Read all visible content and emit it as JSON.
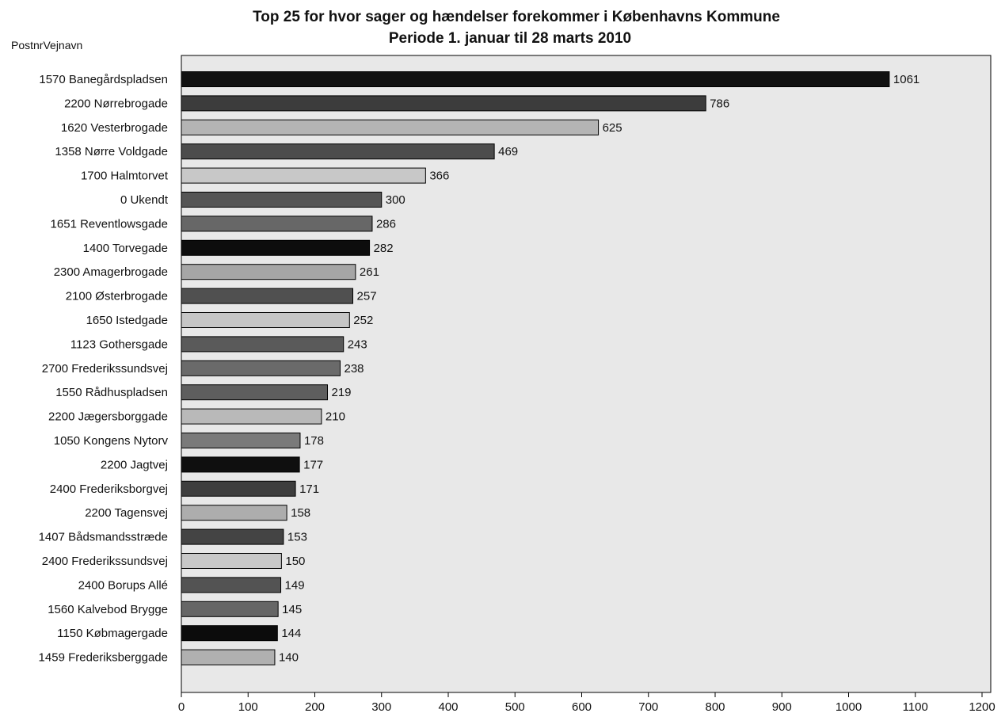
{
  "chart_data": {
    "type": "bar",
    "orientation": "horizontal",
    "title": "Top 25 for hvor sager og hændelser forekommer i Københavns Kommune",
    "subtitle": "Periode 1. januar til 28 marts 2010",
    "ylabel": "PostnrVejnavn",
    "xlabel": "",
    "xlim": [
      0,
      1200
    ],
    "xticks": [
      "0",
      "100",
      "200",
      "300",
      "400",
      "500",
      "600",
      "700",
      "800",
      "900",
      "1000",
      "1100",
      "1200"
    ],
    "grid": false,
    "plot_background": "#e8e8e8",
    "categories": [
      "1570 Banegårdspladsen",
      "2200 Nørrebrogade",
      "1620 Vesterbrogade",
      "1358 Nørre Voldgade",
      "1700 Halmtorvet",
      "0 Ukendt",
      "1651 Reventlowsgade",
      "1400 Torvegade",
      "2300 Amagerbrogade",
      "2100 Østerbrogade",
      "1650 Istedgade",
      "1123 Gothersgade",
      "2700 Frederikssundsvej",
      "1550 Rådhuspladsen",
      "2200 Jægersborggade",
      "1050 Kongens Nytorv",
      "2200 Jagtvej",
      "2400 Frederiksborgvej",
      "2200 Tagensvej",
      "1407 Bådsmandsstræde",
      "2400 Frederikssundsvej",
      "2400 Borups Allé",
      "1560 Kalvebod Brygge",
      "1150 Købmagergade",
      "1459 Frederiksberggade"
    ],
    "values": [
      1061,
      786,
      625,
      469,
      366,
      300,
      286,
      282,
      261,
      257,
      252,
      243,
      238,
      219,
      210,
      178,
      177,
      171,
      158,
      153,
      150,
      149,
      145,
      144,
      140
    ],
    "bar_colors": [
      "#111111",
      "#3c3c3c",
      "#b4b4b4",
      "#4c4c4c",
      "#c8c8c8",
      "#555555",
      "#676767",
      "#0d0d0d",
      "#a6a6a6",
      "#505050",
      "#c6c6c6",
      "#5a5a5a",
      "#6a6a6a",
      "#5e5e5e",
      "#b9b9b9",
      "#7a7a7a",
      "#0f0f0f",
      "#3e3e3e",
      "#adadad",
      "#444444",
      "#c8c8c8",
      "#535353",
      "#666666",
      "#0c0c0c",
      "#b0b0b0"
    ]
  }
}
